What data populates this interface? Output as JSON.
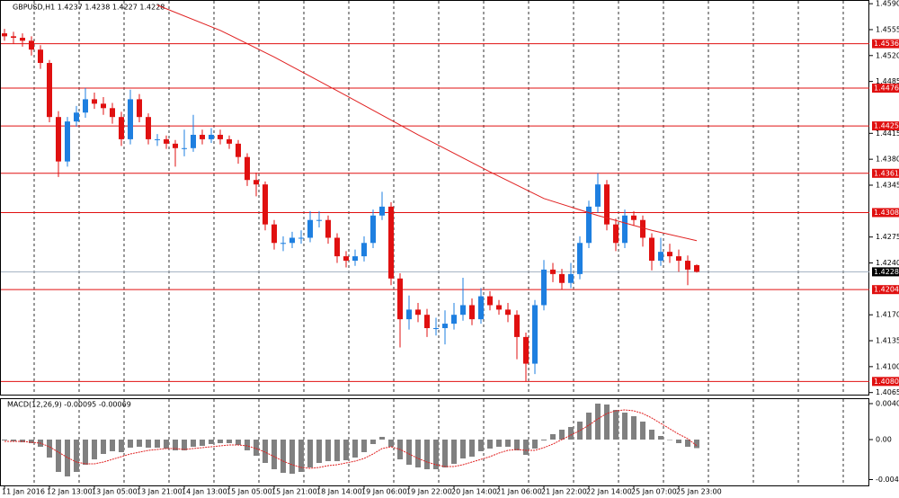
{
  "chart_data": [
    {
      "type": "candlestick",
      "title": "GBPUSD,H1 1.4237 1.4238 1.4227 1.4228",
      "categories": [
        "11 Jan 2016",
        null,
        null,
        null,
        null,
        "12 Jan 13:00",
        null,
        null,
        null,
        null,
        "13 Jan 05:00",
        null,
        null,
        null,
        null,
        "13 Jan 21:00",
        null,
        null,
        null,
        null,
        "14 Jan 13:00",
        null,
        null,
        null,
        null,
        "15 Jan 05:00",
        null,
        null,
        null,
        null,
        "15 Jan 21:00",
        null,
        null,
        null,
        null,
        "18 Jan 14:00",
        null,
        null,
        null,
        null,
        "19 Jan 06:00",
        null,
        null,
        null,
        null,
        "19 Jan 22:00",
        null,
        null,
        null,
        null,
        "20 Jan 14:00",
        null,
        null,
        null,
        null,
        "21 Jan 06:00",
        null,
        null,
        null,
        null,
        "21 Jan 22:00",
        null,
        null,
        null,
        null,
        "22 Jan 14:00",
        null,
        null,
        null,
        null,
        "25 Jan 07:00",
        null,
        null,
        null,
        null,
        "25 Jan 23:00",
        null,
        null
      ],
      "open": [
        1.455,
        1.4546,
        1.4544,
        1.454,
        1.4528,
        1.451,
        1.4437,
        1.4377,
        1.4431,
        1.4443,
        1.4461,
        1.4455,
        1.4449,
        1.4437,
        1.4407,
        1.4461,
        1.4437,
        1.4407,
        1.4407,
        1.4401,
        1.4395,
        1.4395,
        1.4413,
        1.4407,
        1.4413,
        1.4407,
        1.4401,
        1.4383,
        1.4352,
        1.4346,
        1.4292,
        1.4267,
        1.4267,
        1.4274,
        1.4274,
        1.4298,
        1.4298,
        1.4274,
        1.4249,
        1.4243,
        1.4249,
        1.4267,
        1.4304,
        1.4316,
        1.4219,
        1.4164,
        1.4177,
        1.417,
        1.4152,
        1.4152,
        1.4158,
        1.417,
        1.4183,
        1.4164,
        1.4195,
        1.4183,
        1.4177,
        1.417,
        1.414,
        1.4104,
        1.4183,
        1.4231,
        1.4225,
        1.4213,
        1.4225,
        1.4267,
        1.4316,
        1.4346,
        1.4292,
        1.4267,
        1.4304,
        1.4298,
        1.4274,
        1.4243,
        1.4255,
        1.4249,
        1.4243,
        1.4237
      ],
      "high": [
        1.4556,
        1.4552,
        1.455,
        1.4546,
        1.4534,
        1.4514,
        1.4445,
        1.4437,
        1.4452,
        1.4476,
        1.447,
        1.4464,
        1.4456,
        1.4444,
        1.4474,
        1.4468,
        1.4442,
        1.4414,
        1.4412,
        1.4406,
        1.442,
        1.444,
        1.442,
        1.4422,
        1.442,
        1.4412,
        1.4406,
        1.4388,
        1.4362,
        1.435,
        1.4298,
        1.4276,
        1.4282,
        1.4284,
        1.431,
        1.431,
        1.4304,
        1.428,
        1.4256,
        1.4258,
        1.4276,
        1.4312,
        1.4336,
        1.4322,
        1.4226,
        1.4196,
        1.4186,
        1.4178,
        1.4166,
        1.4176,
        1.4186,
        1.422,
        1.4192,
        1.4206,
        1.4202,
        1.419,
        1.4186,
        1.4176,
        1.4146,
        1.419,
        1.4244,
        1.424,
        1.4232,
        1.424,
        1.4276,
        1.4324,
        1.4361,
        1.4352,
        1.43,
        1.4312,
        1.431,
        1.4304,
        1.428,
        1.4274,
        1.4266,
        1.4258,
        1.425,
        1.4238
      ],
      "low": [
        1.454,
        1.4536,
        1.4532,
        1.452,
        1.4502,
        1.443,
        1.4356,
        1.437,
        1.4424,
        1.4436,
        1.4448,
        1.444,
        1.4428,
        1.4398,
        1.44,
        1.443,
        1.44,
        1.4398,
        1.4394,
        1.437,
        1.4384,
        1.439,
        1.44,
        1.4402,
        1.44,
        1.4394,
        1.4374,
        1.4344,
        1.433,
        1.4284,
        1.4258,
        1.4256,
        1.426,
        1.4266,
        1.4268,
        1.4288,
        1.4266,
        1.424,
        1.4234,
        1.4236,
        1.4242,
        1.426,
        1.4298,
        1.421,
        1.4126,
        1.415,
        1.416,
        1.414,
        1.4142,
        1.413,
        1.415,
        1.4162,
        1.4156,
        1.4158,
        1.4176,
        1.417,
        1.416,
        1.411,
        1.408,
        1.409,
        1.4176,
        1.4214,
        1.4204,
        1.4206,
        1.4218,
        1.426,
        1.4308,
        1.4284,
        1.4256,
        1.426,
        1.429,
        1.4262,
        1.423,
        1.4236,
        1.424,
        1.4228,
        1.421,
        1.4227
      ],
      "close": [
        1.4546,
        1.4544,
        1.454,
        1.4528,
        1.451,
        1.4437,
        1.4377,
        1.4431,
        1.4443,
        1.4461,
        1.4455,
        1.4449,
        1.4437,
        1.4407,
        1.4461,
        1.4437,
        1.4407,
        1.4407,
        1.4401,
        1.4395,
        1.4395,
        1.4413,
        1.4407,
        1.4413,
        1.4407,
        1.4401,
        1.4383,
        1.4352,
        1.4346,
        1.4292,
        1.4267,
        1.4267,
        1.4274,
        1.4274,
        1.4298,
        1.4298,
        1.4274,
        1.4249,
        1.4243,
        1.4249,
        1.4267,
        1.4304,
        1.4316,
        1.4219,
        1.4164,
        1.4177,
        1.417,
        1.4152,
        1.4152,
        1.4158,
        1.417,
        1.4183,
        1.4164,
        1.4195,
        1.4183,
        1.4177,
        1.417,
        1.414,
        1.4104,
        1.4183,
        1.4231,
        1.4225,
        1.4213,
        1.4225,
        1.4267,
        1.4316,
        1.4346,
        1.4292,
        1.4267,
        1.4304,
        1.4298,
        1.4274,
        1.4243,
        1.4255,
        1.4249,
        1.4243,
        1.4231,
        1.4228
      ],
      "up_color": "#1e7fe0",
      "down_color": "#e01010",
      "ma": {
        "color": "#e02020",
        "x": [
          17,
          24,
          30,
          38,
          46,
          54,
          60,
          66,
          72,
          77
        ],
        "values": [
          1.4588,
          1.4554,
          1.4518,
          1.4466,
          1.4413,
          1.4363,
          1.4327,
          1.4304,
          1.4284,
          1.427
        ]
      },
      "ylim": [
        1.4061,
        1.4595
      ],
      "yticks": [
        {
          "value": 1.459,
          "label": "1.4590"
        },
        1.4555,
        {
          "value": 1.452,
          "label": "1.4520"
        },
        1.4485,
        1.4415,
        {
          "value": 1.438,
          "label": "1.4380"
        },
        1.4345,
        1.4275,
        {
          "value": 1.424,
          "label": "1.4240"
        },
        {
          "value": 1.417,
          "label": "1.4170"
        },
        1.4135,
        {
          "value": 1.41,
          "label": "1.4100"
        },
        1.4065
      ],
      "levels": [
        1.4536,
        1.4476,
        1.4425,
        1.4361,
        1.4308,
        1.4204,
        {
          "value": 1.408,
          "label": "1.4080"
        }
      ],
      "level_color": "#e01010",
      "last_price": 1.4228,
      "grid": true
    },
    {
      "type": "macd",
      "title": "MACD(12,26,9) -0.00095 -0.00069",
      "color": "#808080",
      "signal_color": "#e02020",
      "values": [
        -0.0001,
        -0.0002,
        -0.0003,
        -0.0004,
        -0.0008,
        -0.002,
        -0.0036,
        -0.0041,
        -0.0036,
        -0.0028,
        -0.0022,
        -0.0016,
        -0.0013,
        -0.0014,
        -0.0009,
        -0.0008,
        -0.0009,
        -0.0009,
        -0.001,
        -0.0012,
        -0.0012,
        -0.0008,
        -0.0007,
        -0.0005,
        -0.0004,
        -0.0004,
        -0.0006,
        -0.0012,
        -0.0018,
        -0.0026,
        -0.0033,
        -0.0037,
        -0.0038,
        -0.0036,
        -0.0031,
        -0.0026,
        -0.0024,
        -0.0024,
        -0.0023,
        -0.002,
        -0.0014,
        -0.0005,
        0.0003,
        -0.0008,
        -0.0022,
        -0.0028,
        -0.0031,
        -0.0033,
        -0.0033,
        -0.0031,
        -0.0027,
        -0.0021,
        -0.0019,
        -0.0013,
        -0.001,
        -0.0008,
        -0.0008,
        -0.0012,
        -0.0017,
        -0.001,
        -0.0001,
        0.0006,
        0.0011,
        0.0014,
        0.002,
        0.003,
        0.004,
        0.0039,
        0.0033,
        0.003,
        0.0026,
        0.002,
        0.0011,
        0.0004,
        0,
        -0.0004,
        -0.0008,
        -0.00095
      ],
      "signal": [
        -0.0002,
        -0.0002,
        -0.0002,
        -0.0003,
        -0.0004,
        -0.0008,
        -0.0014,
        -0.002,
        -0.0025,
        -0.0027,
        -0.0027,
        -0.0025,
        -0.0022,
        -0.0019,
        -0.0016,
        -0.0014,
        -0.0012,
        -0.0011,
        -0.001,
        -0.001,
        -0.0011,
        -0.001,
        -0.0009,
        -0.0008,
        -0.0007,
        -0.0006,
        -0.0006,
        -0.0007,
        -0.001,
        -0.0014,
        -0.0019,
        -0.0024,
        -0.0028,
        -0.0031,
        -0.0032,
        -0.0031,
        -0.0029,
        -0.0028,
        -0.0026,
        -0.0024,
        -0.0021,
        -0.0016,
        -0.001,
        -0.0008,
        -0.0011,
        -0.0016,
        -0.0021,
        -0.0025,
        -0.0028,
        -0.003,
        -0.003,
        -0.0028,
        -0.0025,
        -0.0022,
        -0.0019,
        -0.0015,
        -0.0012,
        -0.0011,
        -0.0012,
        -0.0012,
        -0.0009,
        -0.0005,
        0,
        0.0005,
        0.001,
        0.0016,
        0.0023,
        0.0029,
        0.0032,
        0.0033,
        0.0032,
        0.0029,
        0.0024,
        0.0018,
        0.0012,
        0.0006,
        0.0001,
        -0.00069
      ],
      "ylim": [
        -0.0051,
        0.0045
      ],
      "yticks": [
        {
          "value": 0.004,
          "label": "0.00400"
        },
        {
          "value": 0,
          "label": "0.00"
        },
        {
          "value": -0.00445,
          "label": "-0.00445"
        }
      ]
    }
  ]
}
